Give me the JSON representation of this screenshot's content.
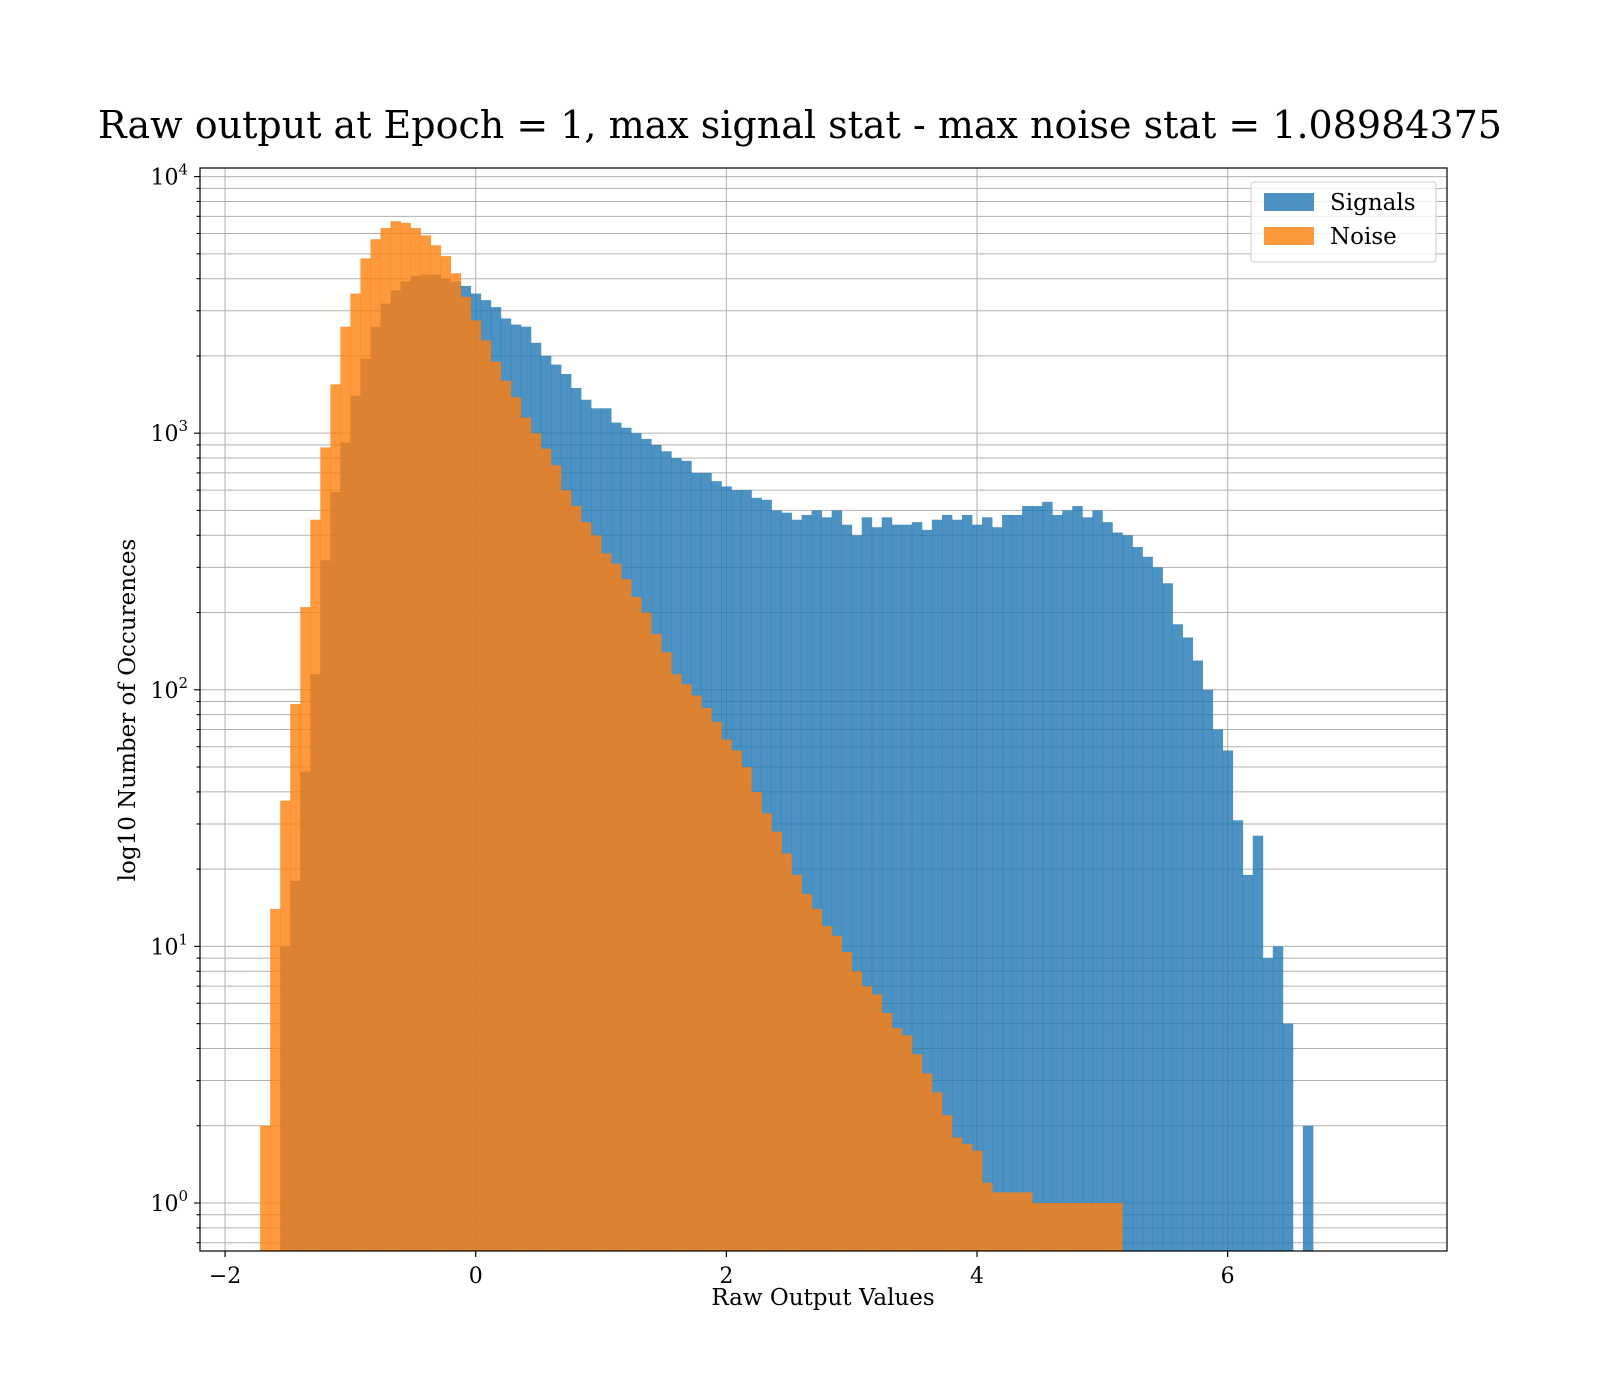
{
  "chart_data": {
    "type": "bar",
    "title": "Raw output at Epoch = 1, max signal stat - max noise stat = 1.08984375",
    "xlabel": "Raw Output Values",
    "ylabel": "log10 Number of Occurences",
    "xlim": [
      -2.2,
      7.75
    ],
    "ylim": [
      0.65,
      10800
    ],
    "yscale": "log",
    "grid": true,
    "legend_position": "upper right",
    "xticks": [
      {
        "value": -2,
        "label": "−2"
      },
      {
        "value": 0,
        "label": "0"
      },
      {
        "value": 2,
        "label": "2"
      },
      {
        "value": 4,
        "label": "4"
      },
      {
        "value": 6,
        "label": "6"
      }
    ],
    "yticks": [
      {
        "value": 1,
        "base": "10",
        "exp": "0"
      },
      {
        "value": 10,
        "base": "10",
        "exp": "1"
      },
      {
        "value": 100,
        "base": "10",
        "exp": "2"
      },
      {
        "value": 1000,
        "base": "10",
        "exp": "3"
      },
      {
        "value": 10000,
        "base": "10",
        "exp": "4"
      }
    ],
    "series": [
      {
        "name": "Signals",
        "color": "#1f77b4",
        "opacity": 0.8,
        "bin_start": -1.72,
        "bin_width": 0.08,
        "values": [
          0,
          0,
          10,
          18,
          48,
          115,
          320,
          590,
          920,
          1400,
          1950,
          2600,
          3200,
          3600,
          3900,
          4100,
          4150,
          4150,
          4000,
          3900,
          3750,
          3500,
          3300,
          3100,
          2800,
          2650,
          2600,
          2250,
          2000,
          1850,
          1700,
          1500,
          1350,
          1250,
          1250,
          1100,
          1050,
          1000,
          950,
          900,
          850,
          800,
          780,
          700,
          700,
          650,
          620,
          600,
          600,
          560,
          550,
          500,
          490,
          460,
          480,
          500,
          470,
          500,
          440,
          400,
          470,
          430,
          470,
          440,
          440,
          450,
          420,
          460,
          480,
          460,
          480,
          440,
          470,
          430,
          480,
          480,
          520,
          520,
          540,
          480,
          500,
          520,
          470,
          500,
          450,
          410,
          400,
          360,
          330,
          300,
          260,
          180,
          160,
          130,
          100,
          70,
          58,
          31,
          19,
          27,
          9,
          10,
          5,
          0,
          2
        ]
      },
      {
        "name": "Noise",
        "color": "#ff7f0e",
        "opacity": 0.8,
        "bin_start": -1.72,
        "bin_width": 0.08,
        "values": [
          2,
          14,
          37,
          88,
          210,
          460,
          880,
          1550,
          2600,
          3500,
          4800,
          5700,
          6300,
          6700,
          6600,
          6300,
          5900,
          5400,
          4900,
          4200,
          3400,
          2750,
          2300,
          1900,
          1600,
          1380,
          1150,
          1000,
          870,
          750,
          600,
          520,
          450,
          400,
          340,
          310,
          270,
          230,
          200,
          165,
          140,
          115,
          105,
          95,
          85,
          75,
          64,
          58,
          50,
          40,
          33,
          28,
          23,
          19,
          16,
          14,
          12,
          11,
          9.5,
          8,
          7,
          6.5,
          5.5,
          4.8,
          4.5,
          3.8,
          3.2,
          2.7,
          2.2,
          1.8,
          1.7,
          1.6,
          1.2,
          1.1,
          1.1,
          1.1,
          1.1,
          1,
          1,
          1,
          1,
          1,
          1,
          1,
          1,
          1,
          0,
          0,
          0,
          0,
          0,
          0,
          0,
          0,
          0,
          0,
          0,
          0,
          0,
          0,
          0,
          0,
          0,
          0,
          0,
          0,
          0,
          0,
          0,
          0,
          0,
          0,
          0,
          0,
          0,
          0,
          0,
          0,
          0,
          0,
          0,
          0,
          0,
          0
        ]
      }
    ]
  }
}
